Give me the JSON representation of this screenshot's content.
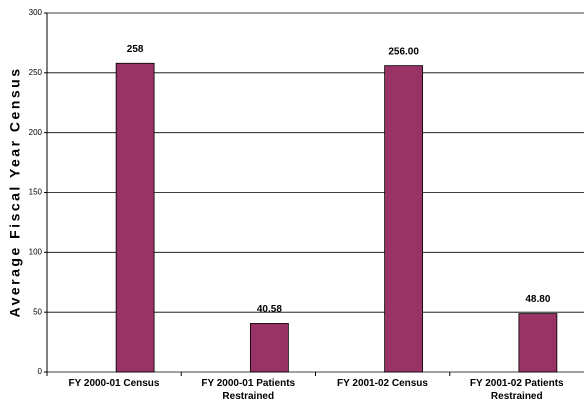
{
  "chart_data": {
    "type": "bar",
    "y_label": "Average Fiscal Year Census",
    "categories": [
      "FY 2000-01 Census",
      "FY 2000-01 Patients Restrained",
      "FY 2001-02 Census",
      "FY 2001-02 Patients Restrained"
    ],
    "values": [
      258,
      40.58,
      256,
      48.8
    ],
    "value_labels": [
      "258",
      "40.58",
      "256.00",
      "48.80"
    ],
    "color": "#993366",
    "ylim": [
      0,
      300
    ],
    "yticks": [
      0,
      50,
      100,
      150,
      200,
      250,
      300
    ],
    "grid": true
  }
}
